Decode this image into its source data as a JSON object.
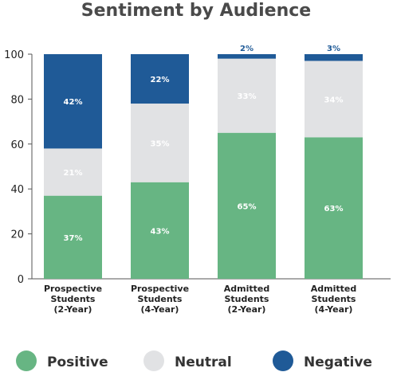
{
  "chart_data": {
    "type": "bar",
    "stacked": true,
    "title": "Sentiment by Audience",
    "xlabel": "",
    "ylabel": "",
    "ylim": [
      0,
      100
    ],
    "yticks": [
      0,
      20,
      40,
      60,
      80,
      100
    ],
    "grid": false,
    "legend_position": "bottom",
    "categories": [
      [
        "Prospective",
        "Students",
        "(2-Year)"
      ],
      [
        "Prospective",
        "Students",
        "(4-Year)"
      ],
      [
        "Admitted",
        "Students",
        "(2-Year)"
      ],
      [
        "Admitted",
        "Students",
        "(4-Year)"
      ]
    ],
    "series": [
      {
        "name": "Positive",
        "color": "#67b583",
        "label_color": "#ffffff",
        "values": [
          37,
          43,
          65,
          63
        ],
        "labels": [
          "37%",
          "43%",
          "65%",
          "63%"
        ]
      },
      {
        "name": "Neutral",
        "color": "#e1e2e4",
        "label_color": "#ffffff",
        "values": [
          21,
          35,
          33,
          34
        ],
        "labels": [
          "21%",
          "35%",
          "33%",
          "34%"
        ]
      },
      {
        "name": "Negative",
        "color": "#1f5a97",
        "label_color": "#ffffff",
        "outside_label_color": "#1f5a97",
        "values": [
          42,
          22,
          2,
          3
        ],
        "labels": [
          "42%",
          "22%",
          "2%",
          "3%"
        ]
      }
    ]
  }
}
